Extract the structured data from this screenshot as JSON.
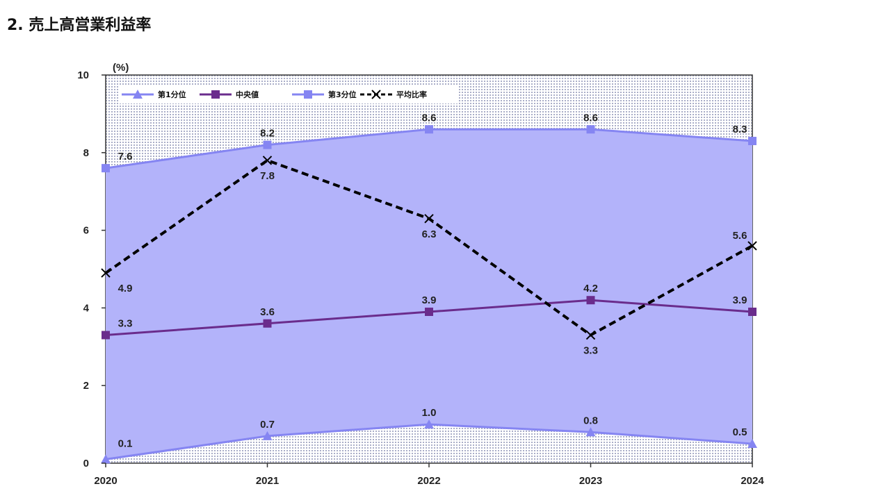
{
  "page": {
    "title": "2. 売上高営業利益率"
  },
  "chart_data": {
    "type": "line",
    "unit_label": "(%)",
    "categories": [
      "2020",
      "2021",
      "2022",
      "2023",
      "2024"
    ],
    "ylim": [
      0,
      10
    ],
    "yticks": [
      "0",
      "2",
      "4",
      "6",
      "8",
      "10"
    ],
    "grid": false,
    "legend_position": "top-left",
    "series": [
      {
        "name": "第1分位",
        "values": [
          0.1,
          0.7,
          1.0,
          0.8,
          0.5
        ],
        "labels": [
          "0.1",
          "0.7",
          "1.0",
          "0.8",
          "0.5"
        ],
        "color": "#8585f2",
        "marker": "triangle",
        "dashed": false
      },
      {
        "name": "中央値",
        "values": [
          3.3,
          3.6,
          3.9,
          4.2,
          3.9
        ],
        "labels": [
          "3.3",
          "3.6",
          "3.9",
          "4.2",
          "3.9"
        ],
        "color": "#6a2c8c",
        "marker": "square",
        "dashed": false
      },
      {
        "name": "第3分位",
        "values": [
          7.6,
          8.2,
          8.6,
          8.6,
          8.3
        ],
        "labels": [
          "7.6",
          "8.2",
          "8.6",
          "8.6",
          "8.3"
        ],
        "color": "#8585f2",
        "marker": "square",
        "dashed": false
      },
      {
        "name": "平均比率",
        "values": [
          4.9,
          7.8,
          6.3,
          3.3,
          5.6
        ],
        "labels": [
          "4.9",
          "7.8",
          "6.3",
          "3.3",
          "5.6"
        ],
        "color": "#000000",
        "marker": "x",
        "dashed": true
      }
    ],
    "band": {
      "between": [
        "第1分位",
        "第3分位"
      ],
      "color": "#b3b3fa"
    },
    "background_color": "#d4d6e6"
  }
}
